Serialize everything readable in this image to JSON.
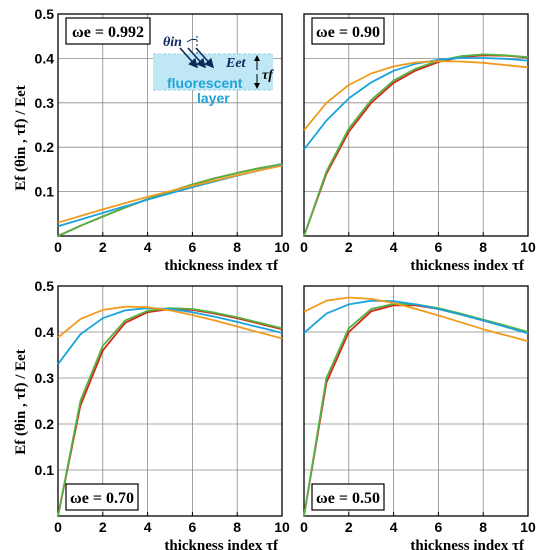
{
  "colors": {
    "red": "#d62718",
    "green": "#54b243",
    "blue": "#1aa3dc",
    "orange": "#f09b1e",
    "layer_fill": "#bfe7f6",
    "arrow": "#0b2a5b"
  },
  "axis_text": {
    "xlabel": "thickness index τf",
    "ylabel": "Ef (θin , τf) / Eet"
  },
  "inset": {
    "theta": "θin",
    "eet": "Eet",
    "tau": "τf",
    "line1": "fluorescent",
    "line2": "layer"
  },
  "chart_data": [
    {
      "type": "line",
      "panel_label": "ωe = 0.992",
      "xlabel": "thickness index τf",
      "ylabel": "Ef (θin , τf) / Eet",
      "xlim": [
        0,
        10
      ],
      "ylim": [
        0,
        0.5
      ],
      "xticks": [
        "0",
        "2",
        "4",
        "6",
        "8",
        "10"
      ],
      "yticks": [
        "0.1",
        "0.2",
        "0.3",
        "0.4",
        "0.5"
      ],
      "grid": true,
      "x": [
        0,
        1,
        2,
        3,
        4,
        5,
        6,
        7,
        8,
        9,
        10
      ],
      "series": [
        {
          "color": "red",
          "values": [
            0.0,
            0.023,
            0.044,
            0.064,
            0.083,
            0.1,
            0.116,
            0.13,
            0.142,
            0.153,
            0.162
          ]
        },
        {
          "color": "green",
          "values": [
            0.0,
            0.023,
            0.044,
            0.064,
            0.083,
            0.1,
            0.116,
            0.13,
            0.142,
            0.153,
            0.162
          ]
        },
        {
          "color": "blue",
          "values": [
            0.022,
            0.037,
            0.052,
            0.067,
            0.082,
            0.096,
            0.11,
            0.123,
            0.136,
            0.148,
            0.16
          ]
        },
        {
          "color": "orange",
          "values": [
            0.03,
            0.045,
            0.06,
            0.074,
            0.088,
            0.101,
            0.113,
            0.125,
            0.137,
            0.148,
            0.158
          ]
        }
      ]
    },
    {
      "type": "line",
      "panel_label": "ωe = 0.90",
      "xlabel": "thickness index τf",
      "ylabel": "",
      "xlim": [
        0,
        10
      ],
      "ylim": [
        0,
        0.5
      ],
      "xticks": [
        "0",
        "2",
        "4",
        "6",
        "8",
        "10"
      ],
      "yticks": [],
      "grid": true,
      "x": [
        0,
        1,
        2,
        3,
        4,
        5,
        6,
        7,
        8,
        9,
        10
      ],
      "series": [
        {
          "color": "red",
          "values": [
            0.0,
            0.14,
            0.235,
            0.3,
            0.345,
            0.373,
            0.392,
            0.403,
            0.407,
            0.406,
            0.402
          ]
        },
        {
          "color": "green",
          "values": [
            0.0,
            0.145,
            0.242,
            0.306,
            0.35,
            0.377,
            0.395,
            0.405,
            0.409,
            0.407,
            0.403
          ]
        },
        {
          "color": "blue",
          "values": [
            0.195,
            0.26,
            0.31,
            0.346,
            0.372,
            0.388,
            0.397,
            0.401,
            0.401,
            0.399,
            0.395
          ]
        },
        {
          "color": "orange",
          "values": [
            0.238,
            0.3,
            0.34,
            0.366,
            0.382,
            0.391,
            0.394,
            0.393,
            0.39,
            0.385,
            0.38
          ]
        }
      ]
    },
    {
      "type": "line",
      "panel_label": "ωe = 0.70",
      "xlabel": "thickness index τf",
      "ylabel": "Ef (θin , τf) / Eet",
      "xlim": [
        0,
        10
      ],
      "ylim": [
        0,
        0.5
      ],
      "xticks": [
        "0",
        "2",
        "4",
        "6",
        "8",
        "10"
      ],
      "yticks": [
        "0.1",
        "0.2",
        "0.3",
        "0.4",
        "0.5"
      ],
      "grid": true,
      "x": [
        0,
        1,
        2,
        3,
        4,
        5,
        6,
        7,
        8,
        9,
        10
      ],
      "series": [
        {
          "color": "red",
          "values": [
            0.0,
            0.24,
            0.36,
            0.42,
            0.443,
            0.45,
            0.448,
            0.44,
            0.43,
            0.418,
            0.406
          ]
        },
        {
          "color": "green",
          "values": [
            0.0,
            0.25,
            0.37,
            0.425,
            0.446,
            0.452,
            0.45,
            0.442,
            0.432,
            0.42,
            0.408
          ]
        },
        {
          "color": "blue",
          "values": [
            0.33,
            0.395,
            0.43,
            0.447,
            0.452,
            0.45,
            0.443,
            0.433,
            0.422,
            0.41,
            0.398
          ]
        },
        {
          "color": "orange",
          "values": [
            0.388,
            0.428,
            0.448,
            0.455,
            0.454,
            0.447,
            0.437,
            0.425,
            0.412,
            0.399,
            0.386
          ]
        }
      ]
    },
    {
      "type": "line",
      "panel_label": "ωe = 0.50",
      "xlabel": "thickness index τf",
      "ylabel": "",
      "xlim": [
        0,
        10
      ],
      "ylim": [
        0,
        0.5
      ],
      "xticks": [
        "0",
        "2",
        "4",
        "6",
        "8",
        "10"
      ],
      "yticks": [],
      "grid": true,
      "x": [
        0,
        1,
        2,
        3,
        4,
        5,
        6,
        7,
        8,
        9,
        10
      ],
      "series": [
        {
          "color": "red",
          "values": [
            0.0,
            0.29,
            0.4,
            0.445,
            0.458,
            0.458,
            0.45,
            0.438,
            0.425,
            0.412,
            0.398
          ]
        },
        {
          "color": "green",
          "values": [
            0.0,
            0.3,
            0.408,
            0.45,
            0.461,
            0.46,
            0.452,
            0.44,
            0.427,
            0.414,
            0.4
          ]
        },
        {
          "color": "blue",
          "values": [
            0.398,
            0.44,
            0.46,
            0.468,
            0.467,
            0.46,
            0.45,
            0.438,
            0.425,
            0.411,
            0.397
          ]
        },
        {
          "color": "orange",
          "values": [
            0.444,
            0.468,
            0.475,
            0.472,
            0.463,
            0.45,
            0.436,
            0.421,
            0.406,
            0.393,
            0.38
          ]
        }
      ]
    }
  ]
}
